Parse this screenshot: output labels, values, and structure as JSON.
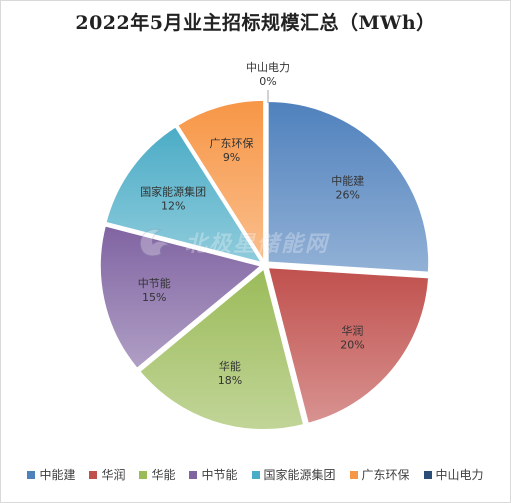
{
  "chart_data": {
    "type": "pie",
    "title": "2022年5月业主招标规模汇总（MWh）",
    "watermark": "北极星储能网",
    "legend_position": "bottom",
    "slices": [
      {
        "name": "中能建",
        "value": 26,
        "label": "26%",
        "color": "#4f81bd"
      },
      {
        "name": "华润",
        "value": 20,
        "label": "20%",
        "color": "#c0504d"
      },
      {
        "name": "华能",
        "value": 18,
        "label": "18%",
        "color": "#9bbb59"
      },
      {
        "name": "中节能",
        "value": 15,
        "label": "15%",
        "color": "#8064a2"
      },
      {
        "name": "国家能源集团",
        "value": 12,
        "label": "12%",
        "color": "#4bacc6"
      },
      {
        "name": "广东环保",
        "value": 9,
        "label": "9%",
        "color": "#f79646"
      },
      {
        "name": "中山电力",
        "value": 0,
        "label": "0%",
        "color": "#2c4d75"
      }
    ]
  }
}
